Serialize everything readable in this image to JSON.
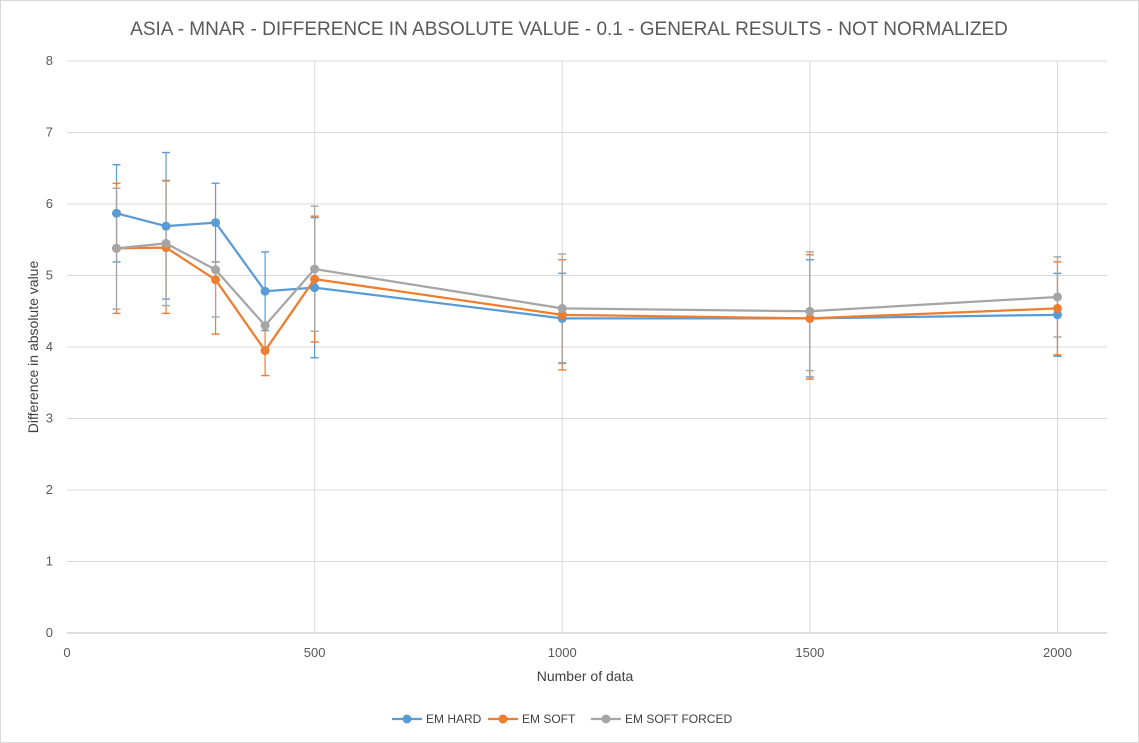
{
  "chart_data": {
    "type": "scatter",
    "title": "ASIA - MNAR - DIFFERENCE IN ABSOLUTE VALUE - 0.1 - GENERAL RESULTS - NOT NORMALIZED",
    "xlabel": "Number of data",
    "ylabel": "Difference in absolute value",
    "xlim": [
      0,
      2100
    ],
    "ylim": [
      0,
      8
    ],
    "x_ticks": [
      0,
      500,
      1000,
      1500,
      2000
    ],
    "y_ticks": [
      0,
      1,
      2,
      3,
      4,
      5,
      6,
      7,
      8
    ],
    "grid": true,
    "legend_position": "bottom",
    "x": [
      100,
      200,
      300,
      400,
      500,
      1000,
      1500,
      2000
    ],
    "series": [
      {
        "name": "EM HARD",
        "color": "#5b9bd5",
        "values": [
          5.87,
          5.69,
          5.74,
          4.78,
          4.83,
          4.4,
          4.4,
          4.45
        ],
        "error_upper": [
          6.55,
          6.72,
          6.29,
          5.33,
          5.81,
          5.03,
          5.22,
          5.03
        ],
        "error_lower": [
          5.19,
          4.67,
          5.19,
          4.23,
          3.85,
          3.77,
          3.58,
          3.87
        ]
      },
      {
        "name": "EM SOFT",
        "color": "#ed7d31",
        "values": [
          5.38,
          5.39,
          4.94,
          3.95,
          4.95,
          4.45,
          4.4,
          4.54
        ],
        "error_upper": [
          6.29,
          6.33,
          5.19,
          4.3,
          5.83,
          5.22,
          5.29,
          5.19
        ],
        "error_lower": [
          4.47,
          4.47,
          4.18,
          3.6,
          4.07,
          3.68,
          3.55,
          3.89
        ]
      },
      {
        "name": "EM SOFT FORCED",
        "color": "#a5a5a5",
        "values": [
          5.38,
          5.45,
          5.08,
          4.3,
          5.09,
          4.54,
          4.5,
          4.7
        ],
        "error_upper": [
          6.22,
          6.32,
          5.19,
          4.3,
          5.97,
          5.3,
          5.33,
          5.26
        ],
        "error_lower": [
          4.53,
          4.58,
          4.42,
          4.3,
          4.22,
          3.78,
          3.67,
          4.14
        ]
      }
    ]
  }
}
